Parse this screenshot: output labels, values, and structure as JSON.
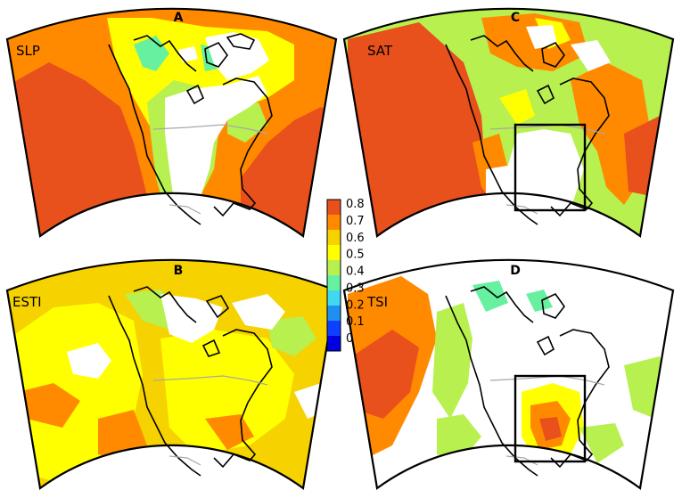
{
  "panels": [
    {
      "letter": "A",
      "variable": "SLP"
    },
    {
      "letter": "B",
      "variable": "ESTI"
    },
    {
      "letter": "C",
      "variable": "SAT"
    },
    {
      "letter": "D",
      "variable": "TSI"
    }
  ],
  "colorbar": {
    "ticks": [
      "0.8",
      "0.7",
      "0.6",
      "0.5",
      "0.4",
      "0.3",
      "0.2",
      "0.1",
      "0"
    ],
    "colors": [
      "#e8501c",
      "#ff8a00",
      "#f5d200",
      "#ffff00",
      "#b8f050",
      "#66f0a0",
      "#40d8f0",
      "#2090f0",
      "#1040ff",
      "#0000e0"
    ]
  },
  "colors": {
    "background": "#ffffff",
    "outline": "#000000",
    "border": "#a8a8a8"
  }
}
